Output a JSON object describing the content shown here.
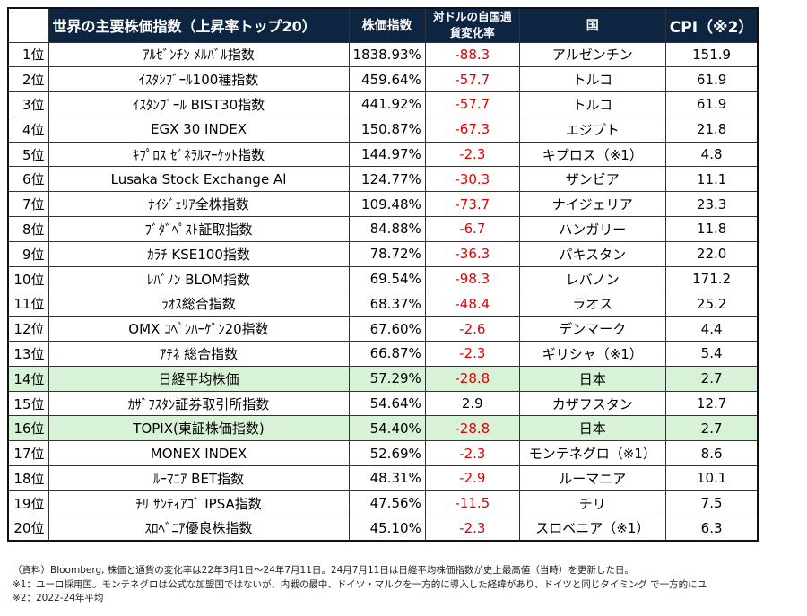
{
  "header": {
    "title": "世界の主要株価指数（上昇率トップ20）",
    "price": "株価指数",
    "fx": "対ドルの自国通貨変化率",
    "country": "国",
    "cpi": "CPI（※2）"
  },
  "colors": {
    "header_bg": "#0e2542",
    "negative": "#e00000",
    "highlight": "#d7f2d7"
  },
  "rows": [
    {
      "rank": "1位",
      "name": "ｱﾙｾﾞﾝﾁﾝ ﾒﾙﾊﾞﾙ指数",
      "price": "1838.93%",
      "fx": "-88.3",
      "country": "アルゼンチン",
      "cpi": "151.9"
    },
    {
      "rank": "2位",
      "name": "ｲｽﾀﾝﾌﾞｰﾙ100種指数",
      "price": "459.64%",
      "fx": "-57.7",
      "country": "トルコ",
      "cpi": "61.9"
    },
    {
      "rank": "3位",
      "name": "ｲｽﾀﾝﾌﾞｰﾙ BIST30指数",
      "price": "441.92%",
      "fx": "-57.7",
      "country": "トルコ",
      "cpi": "61.9"
    },
    {
      "rank": "4位",
      "name": "EGX 30 INDEX",
      "price": "150.87%",
      "fx": "-67.3",
      "country": "エジプト",
      "cpi": "21.8"
    },
    {
      "rank": "5位",
      "name": "ｷﾌﾟﾛｽ ｾﾞﾈﾗﾙﾏｰｹｯﾄ指数",
      "price": "144.97%",
      "fx": "-2.3",
      "country": "キプロス（※1）",
      "cpi": "4.8"
    },
    {
      "rank": "6位",
      "name": "Lusaka Stock Exchange Al",
      "price": "124.77%",
      "fx": "-30.3",
      "country": "ザンビア",
      "cpi": "11.1"
    },
    {
      "rank": "7位",
      "name": "ﾅｲｼﾞｪﾘｱ全株指数",
      "price": "109.48%",
      "fx": "-73.7",
      "country": "ナイジェリア",
      "cpi": "23.3"
    },
    {
      "rank": "8位",
      "name": "ﾌﾞﾀﾞﾍﾟｽﾄ証取指数",
      "price": "84.88%",
      "fx": "-6.7",
      "country": "ハンガリー",
      "cpi": "11.8"
    },
    {
      "rank": "9位",
      "name": "ｶﾗﾁ KSE100指数",
      "price": "78.72%",
      "fx": "-36.3",
      "country": "パキスタン",
      "cpi": "22.0"
    },
    {
      "rank": "10位",
      "name": "ﾚﾊﾞﾉﾝ BLOM指数",
      "price": "69.54%",
      "fx": "-98.3",
      "country": "レバノン",
      "cpi": "171.2"
    },
    {
      "rank": "11位",
      "name": "ﾗｵｽ総合指数",
      "price": "68.37%",
      "fx": "-48.4",
      "country": "ラオス",
      "cpi": "25.2"
    },
    {
      "rank": "12位",
      "name": "OMX ｺﾍﾟﾝﾊｰｹﾞﾝ20指数",
      "price": "67.60%",
      "fx": "-2.6",
      "country": "デンマーク",
      "cpi": "4.4"
    },
    {
      "rank": "13位",
      "name": "ｱﾃﾈ 総合指数",
      "price": "66.87%",
      "fx": "-2.3",
      "country": "ギリシャ（※1）",
      "cpi": "5.4"
    },
    {
      "rank": "14位",
      "name": "日経平均株価",
      "price": "57.29%",
      "fx": "-28.8",
      "country": "日本",
      "cpi": "2.7",
      "highlight": true
    },
    {
      "rank": "15位",
      "name": "ｶｻﾞﾌｽﾀﾝ証券取引所指数",
      "price": "54.64%",
      "fx": "2.9",
      "country": "カザフスタン",
      "cpi": "12.7"
    },
    {
      "rank": "16位",
      "name": "TOPIX(東証株価指数)",
      "price": "54.40%",
      "fx": "-28.8",
      "country": "日本",
      "cpi": "2.7",
      "highlight": true
    },
    {
      "rank": "17位",
      "name": "MONEX INDEX",
      "price": "52.69%",
      "fx": "-2.3",
      "country": "モンテネグロ（※1）",
      "cpi": "8.6"
    },
    {
      "rank": "18位",
      "name": "ﾙｰﾏﾆｱ BET指数",
      "price": "48.31%",
      "fx": "-2.9",
      "country": "ルーマニア",
      "cpi": "10.1"
    },
    {
      "rank": "19位",
      "name": "ﾁﾘ ｻﾝﾃｨｱｺﾞ IPSA指数",
      "price": "47.56%",
      "fx": "-11.5",
      "country": "チリ",
      "cpi": "7.5"
    },
    {
      "rank": "20位",
      "name": "ｽﾛﾍﾞﾆｱ優良株指数",
      "price": "45.10%",
      "fx": "-2.3",
      "country": "スロベニア（※1）",
      "cpi": "6.3"
    }
  ],
  "notes": [
    "（資料）Bloomberg, 株価と通貨の変化率は22年3月1日～24年7月11日。24月7月11日は日経平均株価指数が史上最高値（当時）を更新した日。",
    "※1：ユーロ採用国。モンテネグロは公式な加盟国ではないが、内戦の最中、ドイツ・マルクを一方的に導入した経緯があり、ドイツと同じタイミング で一方的にユ",
    "※2：2022-24年平均"
  ]
}
